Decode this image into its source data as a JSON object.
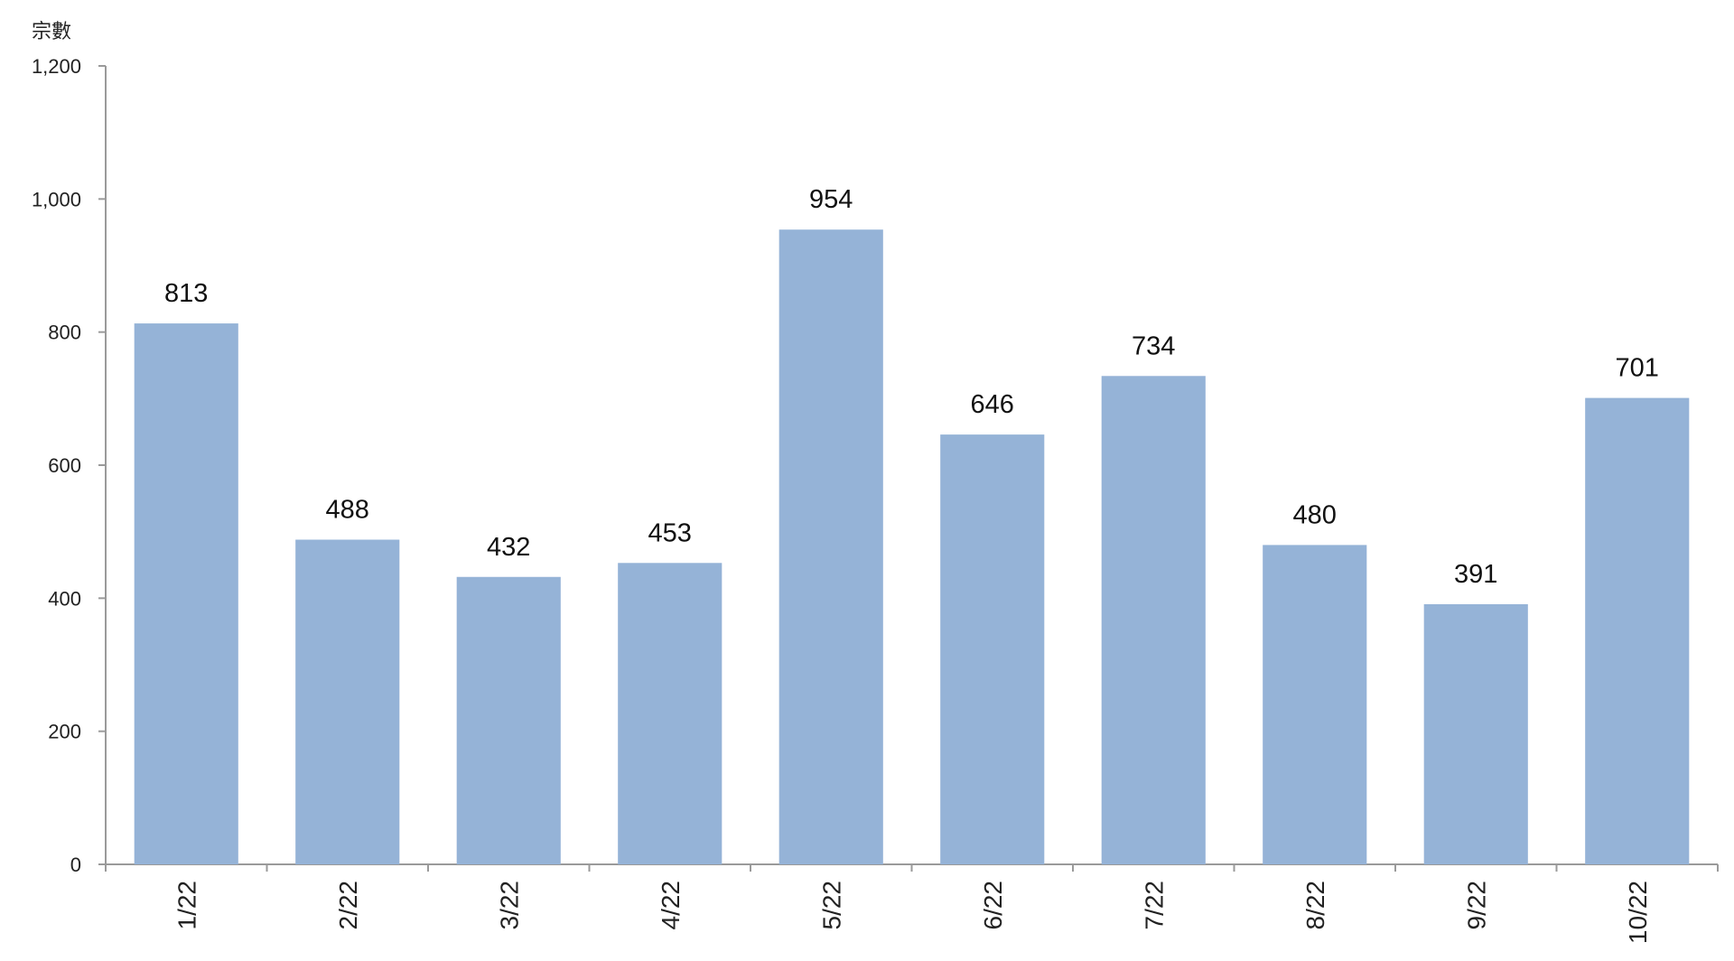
{
  "chart_data": {
    "type": "bar",
    "ylabel": "宗數",
    "xlabel": "",
    "ylim": [
      0,
      1200
    ],
    "yticks": [
      0,
      200,
      400,
      600,
      800,
      1000,
      1200
    ],
    "ytick_labels": [
      "0",
      "200",
      "400",
      "600",
      "800",
      "1,000",
      "1,200"
    ],
    "categories": [
      "1/22",
      "2/22",
      "3/22",
      "4/22",
      "5/22",
      "6/22",
      "7/22",
      "8/22",
      "9/22",
      "10/22"
    ],
    "values": [
      813,
      488,
      432,
      453,
      954,
      646,
      734,
      480,
      391,
      701
    ],
    "data_labels": [
      "813",
      "488",
      "432",
      "453",
      "954",
      "646",
      "734",
      "480",
      "391",
      "701"
    ],
    "bar_color": "#95B3D7",
    "grid": false,
    "legend": "none"
  }
}
